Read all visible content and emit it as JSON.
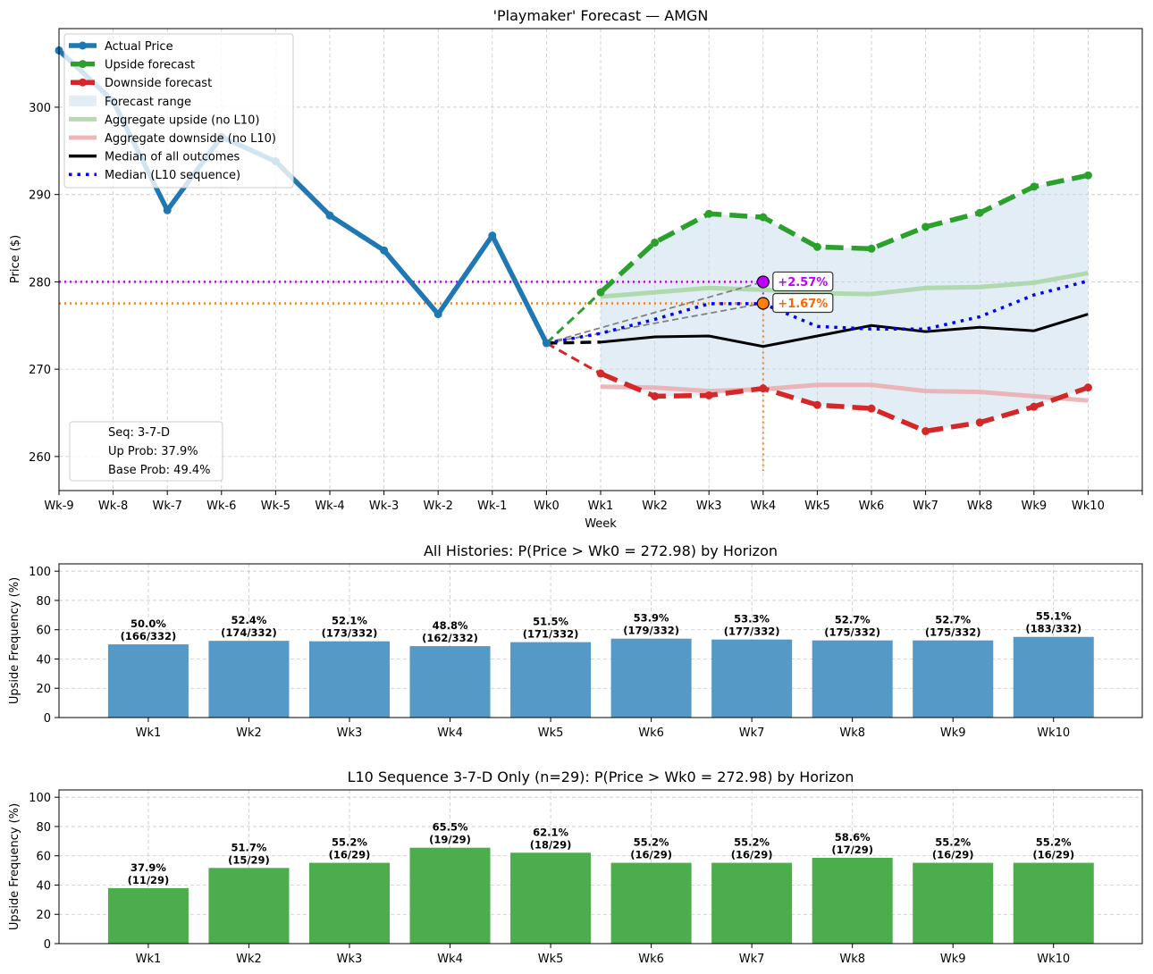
{
  "chart_data": [
    {
      "type": "line",
      "title": "'Playmaker' Forecast — AMGN",
      "xlabel": "Week",
      "ylabel": "Price ($)",
      "x_tick_labels": [
        "Wk-9",
        "Wk-8",
        "Wk-7",
        "Wk-6",
        "Wk-5",
        "Wk-4",
        "Wk-3",
        "Wk-2",
        "Wk-1",
        "Wk0",
        "Wk1",
        "Wk2",
        "Wk3",
        "Wk4",
        "Wk5",
        "Wk6",
        "Wk7",
        "Wk8",
        "Wk9",
        "Wk10"
      ],
      "xlim": [
        -9,
        11
      ],
      "ylim": [
        256.1,
        309.0
      ],
      "y_ticks": [
        260,
        270,
        280,
        290,
        300
      ],
      "grid": true,
      "legend_position": "top-left",
      "legend": [
        {
          "label": "Actual Price",
          "color": "#1f77b4",
          "style": "solid-marker"
        },
        {
          "label": "Upside forecast",
          "color": "#2ca02c",
          "style": "dashed-marker"
        },
        {
          "label": "Downside forecast",
          "color": "#d62728",
          "style": "dashed-marker"
        },
        {
          "label": "Forecast range",
          "color": "#c6dcec",
          "style": "fill"
        },
        {
          "label": "Aggregate upside (no L10)",
          "color": "#a8d5a2",
          "style": "solid-light"
        },
        {
          "label": "Aggregate downside (no L10)",
          "color": "#eaaaae",
          "style": "solid-light"
        },
        {
          "label": "Median of all outcomes",
          "color": "#000000",
          "style": "solid"
        },
        {
          "label": "Median (L10 sequence)",
          "color": "#0000ff",
          "style": "dotted"
        }
      ],
      "series": {
        "actual": {
          "x": [
            -9,
            -8,
            -7,
            -6,
            -5,
            -4,
            -3,
            -2,
            -1,
            0
          ],
          "y": [
            306.5,
            300.7,
            288.2,
            296.6,
            293.8,
            287.6,
            283.6,
            276.3,
            285.3,
            272.98
          ]
        },
        "upside": {
          "x": [
            0,
            1,
            2,
            3,
            4,
            5,
            6,
            7,
            8,
            9,
            10
          ],
          "y": [
            272.98,
            278.8,
            284.5,
            287.8,
            287.4,
            284.0,
            283.8,
            286.3,
            287.9,
            290.9,
            292.2
          ]
        },
        "downside": {
          "x": [
            0,
            1,
            2,
            3,
            4,
            5,
            6,
            7,
            8,
            9,
            10
          ],
          "y": [
            272.98,
            269.5,
            266.9,
            267.0,
            267.8,
            265.9,
            265.5,
            262.9,
            263.9,
            265.7,
            267.9
          ]
        },
        "agg_upside": {
          "x": [
            1,
            2,
            3,
            4,
            5,
            6,
            7,
            8,
            9,
            10
          ],
          "y": [
            278.3,
            278.8,
            279.3,
            279.1,
            278.7,
            278.6,
            279.3,
            279.4,
            279.9,
            281.0
          ]
        },
        "agg_downside": {
          "x": [
            1,
            2,
            3,
            4,
            5,
            6,
            7,
            8,
            9,
            10
          ],
          "y": [
            268.0,
            267.9,
            267.5,
            267.7,
            268.2,
            268.2,
            267.5,
            267.4,
            266.9,
            266.4
          ]
        },
        "median_all": {
          "x": [
            0,
            1,
            2,
            3,
            4,
            5,
            6,
            7,
            8,
            9,
            10
          ],
          "y": [
            272.98,
            273.1,
            273.7,
            273.8,
            272.6,
            273.8,
            275.0,
            274.3,
            274.8,
            274.4,
            276.3
          ]
        },
        "median_l10": {
          "x": [
            0,
            1,
            2,
            3,
            4,
            5,
            6,
            7,
            8,
            9,
            10
          ],
          "y": [
            272.98,
            274.1,
            275.7,
            277.5,
            277.5,
            274.9,
            274.6,
            274.6,
            276.0,
            278.5,
            280.1
          ]
        }
      },
      "annotations": [
        {
          "label": "+2.57%",
          "x": 4,
          "y": 280.0,
          "color": "#bf00ff",
          "hline_color": "#bf00ff"
        },
        {
          "label": "+1.67%",
          "x": 4,
          "y": 277.54,
          "color": "#ff6600",
          "hline_color": "#ff7f0e"
        }
      ],
      "info_box": [
        "Seq: 3-7-D",
        "Up Prob: 37.9%",
        "Base Prob: 49.4%"
      ]
    },
    {
      "type": "bar",
      "title": "All Histories: P(Price > Wk0 = 272.98) by Horizon",
      "ylabel": "Upside Frequency (%)",
      "categories": [
        "Wk1",
        "Wk2",
        "Wk3",
        "Wk4",
        "Wk5",
        "Wk6",
        "Wk7",
        "Wk8",
        "Wk9",
        "Wk10"
      ],
      "values": [
        50.0,
        52.4,
        52.1,
        48.8,
        51.5,
        53.9,
        53.3,
        52.7,
        52.7,
        55.1
      ],
      "counts": [
        "(166/332)",
        "(174/332)",
        "(173/332)",
        "(162/332)",
        "(171/332)",
        "(179/332)",
        "(177/332)",
        "(175/332)",
        "(175/332)",
        "(183/332)"
      ],
      "labels": [
        "50.0%",
        "52.4%",
        "52.1%",
        "48.8%",
        "51.5%",
        "53.9%",
        "53.3%",
        "52.7%",
        "52.7%",
        "55.1%"
      ],
      "color": "#5599c7",
      "ylim": [
        0,
        105
      ],
      "y_ticks": [
        0,
        20,
        40,
        60,
        80,
        100
      ],
      "grid": true
    },
    {
      "type": "bar",
      "title": "L10 Sequence 3-7-D Only (n=29): P(Price > Wk0 = 272.98) by Horizon",
      "ylabel": "Upside Frequency (%)",
      "categories": [
        "Wk1",
        "Wk2",
        "Wk3",
        "Wk4",
        "Wk5",
        "Wk6",
        "Wk7",
        "Wk8",
        "Wk9",
        "Wk10"
      ],
      "values": [
        37.9,
        51.7,
        55.2,
        65.5,
        62.1,
        55.2,
        55.2,
        58.6,
        55.2,
        55.2
      ],
      "counts": [
        "(11/29)",
        "(15/29)",
        "(16/29)",
        "(19/29)",
        "(18/29)",
        "(16/29)",
        "(16/29)",
        "(17/29)",
        "(16/29)",
        "(16/29)"
      ],
      "labels": [
        "37.9%",
        "51.7%",
        "55.2%",
        "65.5%",
        "62.1%",
        "55.2%",
        "55.2%",
        "58.6%",
        "55.2%",
        "55.2%"
      ],
      "color": "#4cad4c",
      "ylim": [
        0,
        105
      ],
      "y_ticks": [
        0,
        20,
        40,
        60,
        80,
        100
      ],
      "grid": true
    }
  ]
}
